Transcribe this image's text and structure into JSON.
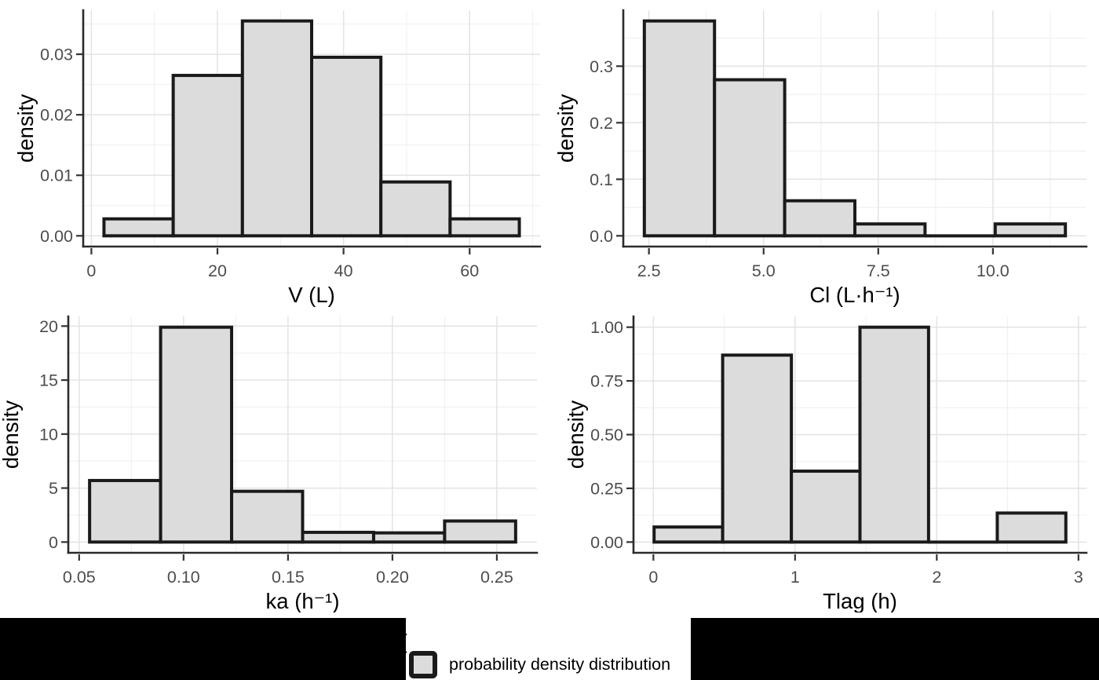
{
  "style": {
    "background": "#FFFFFF",
    "bar_fill": "#DCDCDC",
    "bar_stroke": "#1A1A1A",
    "grid_major": "#E3E3E3",
    "grid_minor": "#F0F0F0",
    "axis_line": "#2B2B2B",
    "tick_color": "#333333",
    "tick_label_color": "#4D4D4D",
    "axis_title_color": "#000000",
    "redaction_color": "#000000"
  },
  "legend": {
    "label": "probability density distribution",
    "swatch_fill": "#DCDCDC",
    "swatch_border": "#1A1A1A",
    "stray_glyph": "(",
    "position": "bottom-center"
  },
  "chart_data": [
    {
      "type": "bar",
      "subtype": "histogram",
      "title": "",
      "xlabel": "V (L)",
      "ylabel": "density",
      "bin_edges": [
        2.0,
        12.98,
        23.96,
        34.94,
        45.92,
        56.9,
        67.88
      ],
      "densities": [
        0.0028,
        0.0265,
        0.0355,
        0.0295,
        0.0089,
        0.0028
      ],
      "xticks": [
        0,
        20,
        40,
        60
      ],
      "xtick_labels": [
        "0",
        "20",
        "40",
        "60"
      ],
      "yticks": [
        0,
        0.01,
        0.02,
        0.03
      ],
      "ytick_labels": [
        "0.00",
        "0.01",
        "0.02",
        "0.03"
      ],
      "xminor": [
        10,
        30,
        50,
        70
      ],
      "yminor": [
        0.005,
        0.015,
        0.025,
        0.035
      ],
      "ylim": [
        0,
        0.0355
      ],
      "grid": true,
      "legend_entry": "probability density distribution"
    },
    {
      "type": "bar",
      "subtype": "histogram",
      "title": "",
      "xlabel": "Cl (L·h⁻¹)",
      "ylabel": "density",
      "bin_edges": [
        2.4,
        3.93,
        5.46,
        6.99,
        8.52,
        10.05,
        11.58
      ],
      "densities": [
        0.38,
        0.276,
        0.062,
        0.021,
        0,
        0.021
      ],
      "xticks": [
        2.5,
        5,
        7.5,
        10
      ],
      "xtick_labels": [
        "2.5",
        "5.0",
        "7.5",
        "10.0"
      ],
      "yticks": [
        0,
        0.1,
        0.2,
        0.3
      ],
      "ytick_labels": [
        "0.0",
        "0.1",
        "0.2",
        "0.3"
      ],
      "xminor": [
        3.75,
        6.25,
        8.75,
        11.25
      ],
      "yminor": [
        0.05,
        0.15,
        0.25,
        0.35
      ],
      "ylim": [
        0,
        0.38
      ],
      "grid": true,
      "legend_entry": "probability density distribution"
    },
    {
      "type": "bar",
      "subtype": "histogram",
      "title": "",
      "xlabel": "ka (h⁻¹)",
      "ylabel": "density",
      "bin_edges": [
        0.055,
        0.089,
        0.123,
        0.157,
        0.191,
        0.225,
        0.259
      ],
      "densities": [
        5.7,
        19.9,
        4.7,
        0.9,
        0.85,
        1.95
      ],
      "xticks": [
        0.05,
        0.1,
        0.15,
        0.2,
        0.25
      ],
      "xtick_labels": [
        "0.05",
        "0.10",
        "0.15",
        "0.20",
        "0.25"
      ],
      "yticks": [
        0,
        5,
        10,
        15,
        20
      ],
      "ytick_labels": [
        "0",
        "5",
        "10",
        "15",
        "20"
      ],
      "xminor": [
        0.075,
        0.125,
        0.175,
        0.225
      ],
      "yminor": [
        2.5,
        7.5,
        12.5,
        17.5
      ],
      "ylim": [
        0,
        19.9
      ],
      "grid": true,
      "legend_entry": "probability density distribution"
    },
    {
      "type": "bar",
      "subtype": "histogram",
      "title": "",
      "xlabel": "Tlag (h)",
      "ylabel": "density",
      "bin_edges": [
        0.005,
        0.489,
        0.974,
        1.458,
        1.942,
        2.427,
        2.911
      ],
      "densities": [
        0.07,
        0.87,
        0.33,
        1.0,
        0,
        0.135
      ],
      "xticks": [
        0,
        1,
        2,
        3
      ],
      "xtick_labels": [
        "0",
        "1",
        "2",
        "3"
      ],
      "yticks": [
        0,
        0.25,
        0.5,
        0.75,
        1.0
      ],
      "ytick_labels": [
        "0.00",
        "0.25",
        "0.50",
        "0.75",
        "1.00"
      ],
      "xminor": [
        0.5,
        1.5,
        2.5
      ],
      "yminor": [
        0.125,
        0.375,
        0.625,
        0.875
      ],
      "ylim": [
        0,
        1.0
      ],
      "grid": true,
      "legend_entry": "probability density distribution"
    }
  ]
}
